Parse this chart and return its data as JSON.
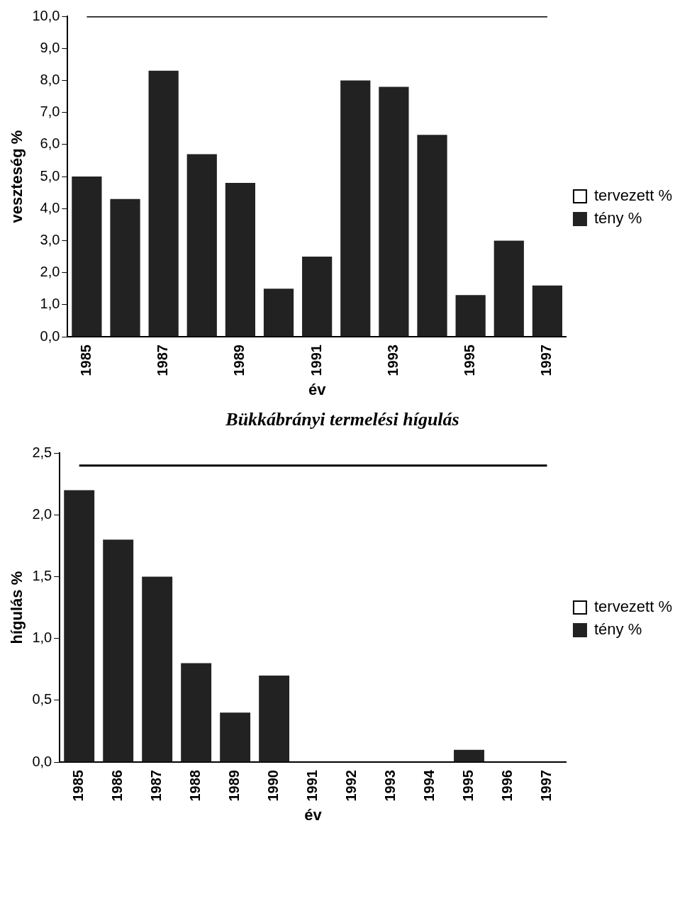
{
  "chart_data": [
    {
      "type": "bar",
      "xlabel": "év",
      "ylabel": "veszteség %",
      "categories": [
        "1985",
        null,
        "1987",
        null,
        "1989",
        null,
        "1991",
        null,
        "1993",
        null,
        "1995",
        null,
        "1997"
      ],
      "series": [
        {
          "name": "tervezett %",
          "type": "line",
          "color": "#000000",
          "values": [
            10.0,
            10.0,
            10.0,
            10.0,
            10.0,
            10.0,
            10.0,
            10.0,
            10.0,
            10.0,
            10.0,
            10.0,
            10.0
          ]
        },
        {
          "name": "tény %",
          "color": "#222222",
          "values": [
            5.0,
            4.3,
            8.3,
            5.7,
            4.8,
            1.5,
            2.5,
            8.0,
            7.8,
            6.3,
            1.3,
            3.0,
            1.6
          ]
        }
      ],
      "ylim": [
        0,
        10
      ],
      "yticks": [
        {
          "value": 0,
          "label": "0,0"
        },
        {
          "value": 1,
          "label": "1,0"
        },
        {
          "value": 2,
          "label": "2,0"
        },
        {
          "value": 3,
          "label": "3,0"
        },
        {
          "value": 4,
          "label": "4,0"
        },
        {
          "value": 5,
          "label": "5,0"
        },
        {
          "value": 6,
          "label": "6,0"
        },
        {
          "value": 7,
          "label": "7,0"
        },
        {
          "value": 8,
          "label": "8,0"
        },
        {
          "value": 9,
          "label": "9,0"
        },
        {
          "value": 10,
          "label": "10,0"
        }
      ],
      "legend": "right",
      "grid": false
    },
    {
      "type": "bar",
      "title": "Bükkábrányi termelési hígulás",
      "xlabel": "év",
      "ylabel": "hígulás %",
      "categories": [
        "1985",
        "1986",
        "1987",
        "1988",
        "1989",
        "1990",
        "1991",
        "1992",
        "1993",
        "1994",
        "1995",
        "1996",
        "1997"
      ],
      "series": [
        {
          "name": "tervezett %",
          "type": "line",
          "color": "#000000",
          "values": [
            2.4,
            2.4,
            2.4,
            2.4,
            2.4,
            2.4,
            2.4,
            2.4,
            2.4,
            2.4,
            2.4,
            2.4,
            2.4
          ]
        },
        {
          "name": "tény %",
          "color": "#222222",
          "values": [
            2.2,
            1.8,
            1.5,
            0.8,
            0.4,
            0.7,
            0,
            0,
            0,
            0,
            0.1,
            0,
            0
          ]
        }
      ],
      "ylim": [
        0,
        2.5
      ],
      "yticks": [
        {
          "value": 0,
          "label": "0,0"
        },
        {
          "value": 0.5,
          "label": "0,5"
        },
        {
          "value": 1,
          "label": "1,0"
        },
        {
          "value": 1.5,
          "label": "1,5"
        },
        {
          "value": 2,
          "label": "2,0"
        },
        {
          "value": 2.5,
          "label": "2,5"
        }
      ],
      "legend": "right",
      "grid": false
    }
  ]
}
